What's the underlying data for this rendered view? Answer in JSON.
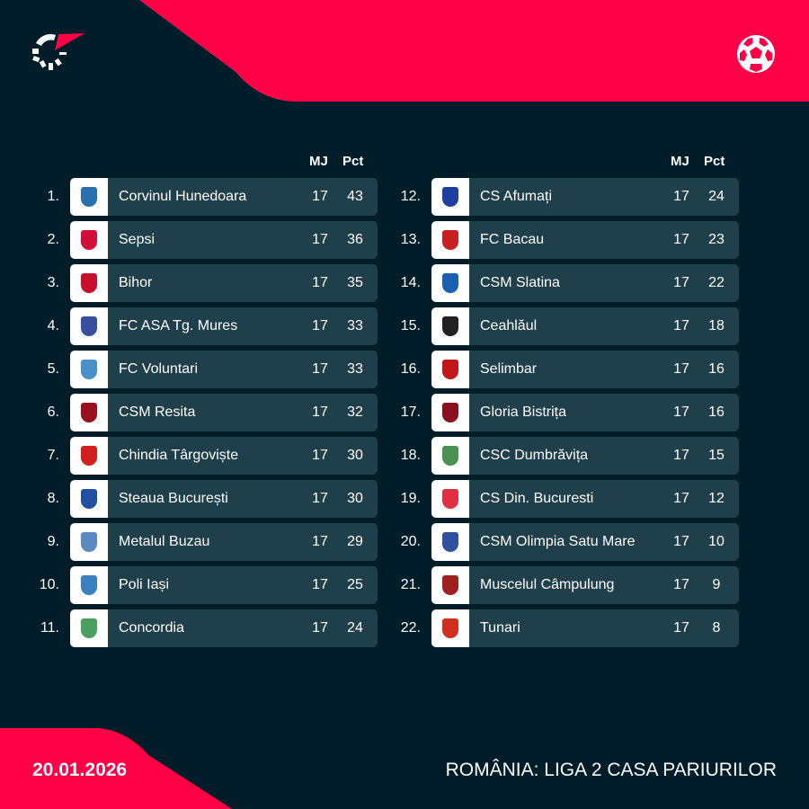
{
  "colors": {
    "background": "#011d29",
    "accent": "#ff0046",
    "row": "#1f3f4b"
  },
  "header": {
    "logo_icon": "flashscore-logo-icon",
    "sport_icon": "soccer-ball-icon"
  },
  "columns": {
    "played": "MJ",
    "points": "Pct"
  },
  "standings": [
    {
      "rank": "1.",
      "team": "Corvinul Hunedoara",
      "played": "17",
      "points": "43",
      "crest": "#2a6fb0"
    },
    {
      "rank": "2.",
      "team": "Sepsi",
      "played": "17",
      "points": "36",
      "crest": "#d0103a"
    },
    {
      "rank": "3.",
      "team": "Bihor",
      "played": "17",
      "points": "35",
      "crest": "#c8102e"
    },
    {
      "rank": "4.",
      "team": "FC ASA Tg. Mures",
      "played": "17",
      "points": "33",
      "crest": "#3a4fa0"
    },
    {
      "rank": "5.",
      "team": "FC Voluntari",
      "played": "17",
      "points": "33",
      "crest": "#4a90c8"
    },
    {
      "rank": "6.",
      "team": "CSM Resita",
      "played": "17",
      "points": "32",
      "crest": "#9a1020"
    },
    {
      "rank": "7.",
      "team": "Chindia Târgoviște",
      "played": "17",
      "points": "30",
      "crest": "#d02020"
    },
    {
      "rank": "8.",
      "team": "Steaua București",
      "played": "17",
      "points": "30",
      "crest": "#2050a0"
    },
    {
      "rank": "9.",
      "team": "Metalul Buzau",
      "played": "17",
      "points": "29",
      "crest": "#5a8ac0"
    },
    {
      "rank": "10.",
      "team": "Poli Iași",
      "played": "17",
      "points": "25",
      "crest": "#3a80c0"
    },
    {
      "rank": "11.",
      "team": "Concordia",
      "played": "17",
      "points": "24",
      "crest": "#4aa060"
    },
    {
      "rank": "12.",
      "team": "CS Afumați",
      "played": "17",
      "points": "24",
      "crest": "#2040a0"
    },
    {
      "rank": "13.",
      "team": "FC Bacau",
      "played": "17",
      "points": "23",
      "crest": "#c82020"
    },
    {
      "rank": "14.",
      "team": "CSM Slatina",
      "played": "17",
      "points": "22",
      "crest": "#1a60b0"
    },
    {
      "rank": "15.",
      "team": "Ceahlăul",
      "played": "17",
      "points": "18",
      "crest": "#222222"
    },
    {
      "rank": "16.",
      "team": "Selimbar",
      "played": "17",
      "points": "16",
      "crest": "#c01818"
    },
    {
      "rank": "17.",
      "team": "Gloria Bistrița",
      "played": "17",
      "points": "16",
      "crest": "#8a1020"
    },
    {
      "rank": "18.",
      "team": "CSC Dumbrăvița",
      "played": "17",
      "points": "15",
      "crest": "#4a9050"
    },
    {
      "rank": "19.",
      "team": "CS Din. Bucuresti",
      "played": "17",
      "points": "12",
      "crest": "#e03040"
    },
    {
      "rank": "20.",
      "team": "CSM Olimpia Satu Mare",
      "played": "17",
      "points": "10",
      "crest": "#3050a0"
    },
    {
      "rank": "21.",
      "team": "Muscelul Câmpulung",
      "played": "17",
      "points": "9",
      "crest": "#a02020"
    },
    {
      "rank": "22.",
      "team": "Tunari",
      "played": "17",
      "points": "8",
      "crest": "#d03020"
    }
  ],
  "footer": {
    "date": "20.01.2026",
    "league": "ROMÂNIA: LIGA 2 CASA PARIURILOR"
  }
}
